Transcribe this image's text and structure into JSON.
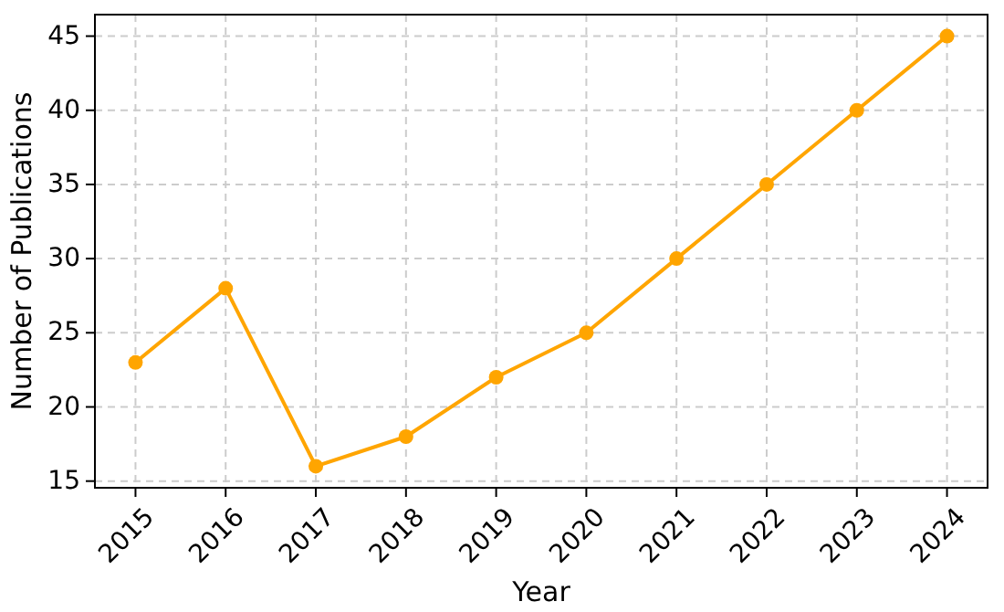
{
  "chart_data": {
    "type": "line",
    "xlabel": "Year",
    "ylabel": "Number of Publications",
    "x": [
      2015,
      2016,
      2017,
      2018,
      2019,
      2020,
      2021,
      2022,
      2023,
      2024
    ],
    "series": [
      {
        "color": "#ffa500",
        "values": [
          23,
          28,
          16,
          18,
          22,
          25,
          30,
          35,
          40,
          45
        ]
      }
    ],
    "xlim": [
      2014.55,
      2024.45
    ],
    "xticks": [
      2015,
      2016,
      2017,
      2018,
      2019,
      2020,
      2021,
      2022,
      2023,
      2024
    ],
    "ylim": [
      14.55,
      46.45
    ],
    "yticks": [
      15,
      20,
      25,
      30,
      35,
      40,
      45
    ],
    "grid": true,
    "marker": "circle",
    "line_style": "solid"
  }
}
